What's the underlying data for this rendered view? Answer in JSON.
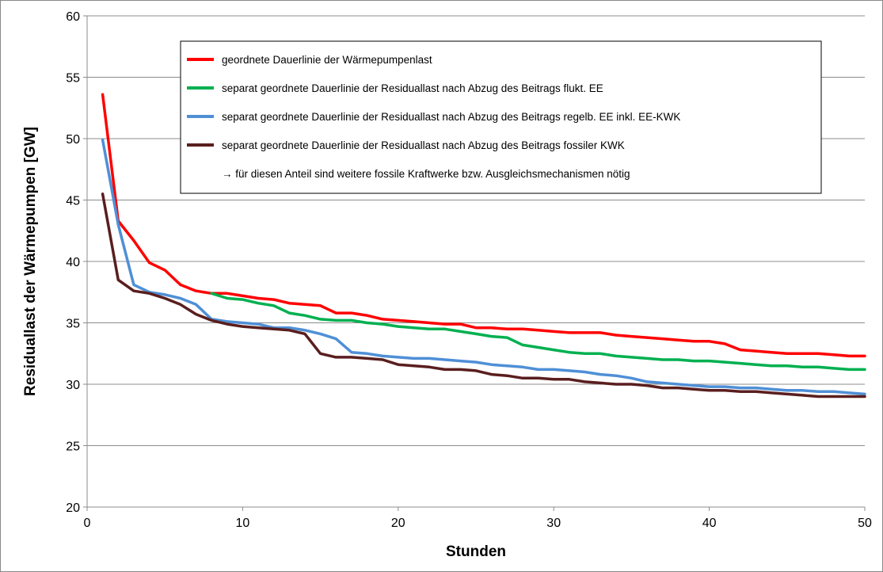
{
  "chart_data": {
    "type": "line",
    "title": "",
    "xlabel": "Stunden",
    "ylabel": "Residuallast  der Wärmepumpen [GW]",
    "xlim": [
      0,
      50
    ],
    "ylim": [
      20,
      60
    ],
    "x_ticks": [
      "0",
      "10",
      "20",
      "30",
      "40",
      "50"
    ],
    "y_ticks": [
      "20",
      "25",
      "30",
      "35",
      "40",
      "45",
      "50",
      "55",
      "60"
    ],
    "grid": "horizontal",
    "legend_position": "top-center",
    "legend_note": "→ für diesen Anteil sind weitere fossile Kraftwerke bzw. Ausgleichsmechanismen nötig",
    "x": [
      1,
      2,
      3,
      4,
      5,
      6,
      7,
      8,
      9,
      10,
      11,
      12,
      13,
      14,
      15,
      16,
      17,
      18,
      19,
      20,
      21,
      22,
      23,
      24,
      25,
      26,
      27,
      28,
      29,
      30,
      31,
      32,
      33,
      34,
      35,
      36,
      37,
      38,
      39,
      40,
      41,
      42,
      43,
      44,
      45,
      46,
      47,
      48,
      49,
      50
    ],
    "series": [
      {
        "name": "geordnete Dauerlinie der Wärmepumpenlast",
        "color": "#ff0000",
        "values": [
          53.6,
          43.3,
          41.7,
          39.9,
          39.3,
          38.1,
          37.6,
          37.4,
          37.4,
          37.2,
          37.0,
          36.9,
          36.6,
          36.5,
          36.4,
          35.8,
          35.8,
          35.6,
          35.3,
          35.2,
          35.1,
          35.0,
          34.9,
          34.9,
          34.6,
          34.6,
          34.5,
          34.5,
          34.4,
          34.3,
          34.2,
          34.2,
          34.2,
          34.0,
          33.9,
          33.8,
          33.7,
          33.6,
          33.5,
          33.5,
          33.3,
          32.8,
          32.7,
          32.6,
          32.5,
          32.5,
          32.5,
          32.4,
          32.3,
          32.3
        ]
      },
      {
        "name": "separat geordnete Dauerlinie der Residuallast nach Abzug des Beitrags flukt. EE",
        "color": "#00b050",
        "values": [
          null,
          null,
          null,
          null,
          null,
          null,
          null,
          37.4,
          37.0,
          36.9,
          36.6,
          36.4,
          35.8,
          35.6,
          35.3,
          35.2,
          35.2,
          35.0,
          34.9,
          34.7,
          34.6,
          34.5,
          34.5,
          34.3,
          34.1,
          33.9,
          33.8,
          33.2,
          33.0,
          32.8,
          32.6,
          32.5,
          32.5,
          32.3,
          32.2,
          32.1,
          32.0,
          32.0,
          31.9,
          31.9,
          31.8,
          31.7,
          31.6,
          31.5,
          31.5,
          31.4,
          31.4,
          31.3,
          31.2,
          31.2
        ]
      },
      {
        "name": "separat geordnete Dauerlinie der Residuallast nach Abzug des Beitrags regelb. EE inkl. EE-KWK",
        "color": "#4f8fd6",
        "values": [
          49.9,
          43.0,
          38.1,
          37.5,
          37.3,
          37.0,
          36.5,
          35.3,
          35.1,
          35.0,
          34.9,
          34.6,
          34.6,
          34.4,
          34.1,
          33.7,
          32.6,
          32.5,
          32.3,
          32.2,
          32.1,
          32.1,
          32.0,
          31.9,
          31.8,
          31.6,
          31.5,
          31.4,
          31.2,
          31.2,
          31.1,
          31.0,
          30.8,
          30.7,
          30.5,
          30.2,
          30.1,
          30.0,
          29.9,
          29.8,
          29.8,
          29.7,
          29.7,
          29.6,
          29.5,
          29.5,
          29.4,
          29.4,
          29.3,
          29.2
        ]
      },
      {
        "name": "separat geordnete Dauerlinie der Residuallast nach Abzug des Beitrags fossiler KWK",
        "color": "#5a1e1e",
        "values": [
          45.5,
          38.5,
          37.6,
          37.4,
          37.0,
          36.5,
          35.7,
          35.2,
          34.9,
          34.7,
          34.6,
          34.5,
          34.4,
          34.1,
          32.5,
          32.2,
          32.2,
          32.1,
          32.0,
          31.6,
          31.5,
          31.4,
          31.2,
          31.2,
          31.1,
          30.8,
          30.7,
          30.5,
          30.5,
          30.4,
          30.4,
          30.2,
          30.1,
          30.0,
          30.0,
          29.9,
          29.7,
          29.7,
          29.6,
          29.5,
          29.5,
          29.4,
          29.4,
          29.3,
          29.2,
          29.1,
          29.0,
          29.0,
          29.0,
          29.0
        ]
      }
    ]
  }
}
